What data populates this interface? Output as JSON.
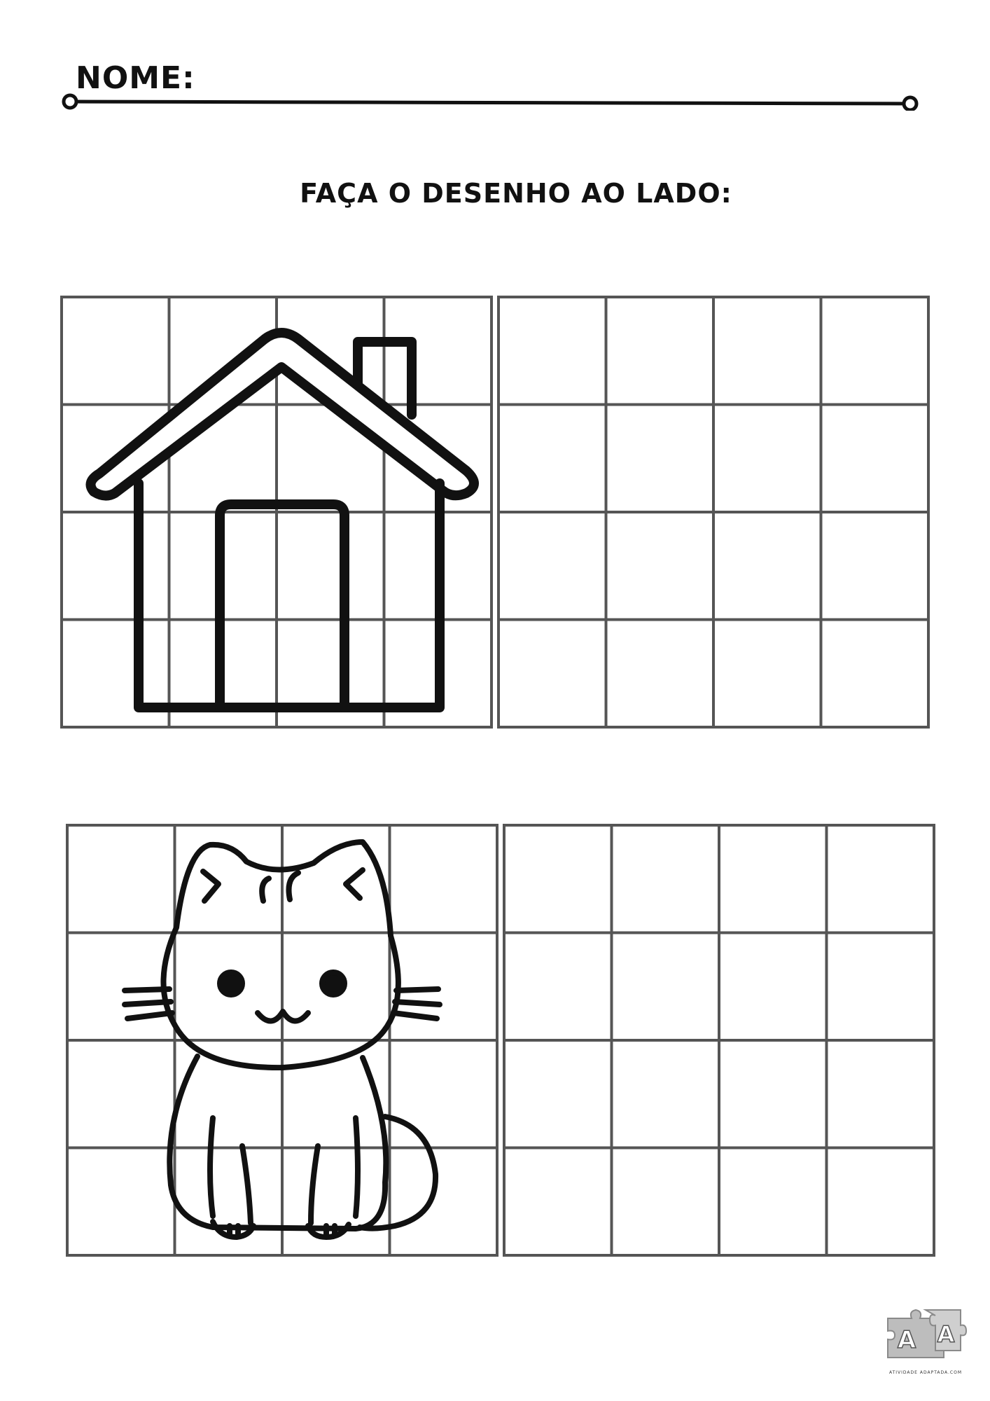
{
  "header": {
    "name_label": "NOME:",
    "instruction": "FAÇA O DESENHO AO LADO:"
  },
  "exercises": [
    {
      "subject": "house-drawing",
      "rows": 4,
      "cols": 4
    },
    {
      "subject": "cat-drawing",
      "rows": 4,
      "cols": 4
    }
  ],
  "logo": {
    "letters": "A A",
    "caption": "ATIVIDADE ADAPTADA.COM"
  }
}
